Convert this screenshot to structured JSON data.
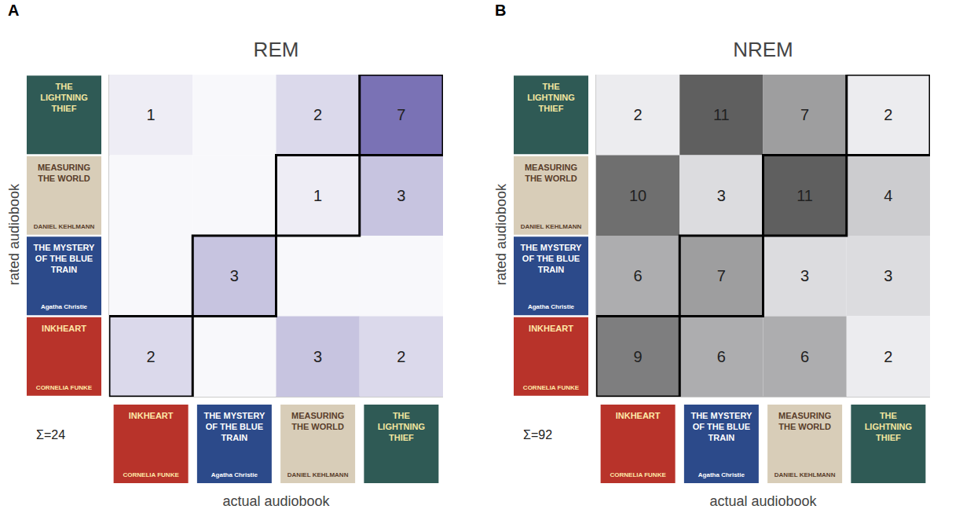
{
  "covers": [
    {
      "title": "INKHEART",
      "author": "CORNELIA FUNKE"
    },
    {
      "title": "THE MYSTERY OF THE BLUE TRAIN",
      "author": "Agatha Christie"
    },
    {
      "title": "MEASURING THE WORLD",
      "author": "DANIEL KEHLMANN"
    },
    {
      "title": "THE LIGHTNING THIEF"
    }
  ],
  "chart_data": [
    {
      "type": "heatmap",
      "panel": "A",
      "title": "REM",
      "x_label": "actual audiobook",
      "y_label": "rated audiobook",
      "x_categories": [
        "INKHEART",
        "THE MYSTERY OF THE BLUE TRAIN",
        "MEASURING THE WORLD",
        "THE LIGHTNING THIEF"
      ],
      "y_categories": [
        "THE LIGHTNING THIEF",
        "MEASURING THE WORLD",
        "THE MYSTERY OF THE BLUE TRAIN",
        "INKHEART"
      ],
      "cells": [
        [
          1,
          null,
          2,
          7
        ],
        [
          null,
          null,
          1,
          3
        ],
        [
          null,
          3,
          null,
          null
        ],
        [
          2,
          null,
          3,
          2
        ]
      ],
      "color": "#7a72b5",
      "total": {
        "value": 24,
        "label": "Σ=24"
      },
      "data_labels": true
    },
    {
      "type": "heatmap",
      "panel": "B",
      "title": "NREM",
      "x_label": "actual audiobook",
      "y_label": "rated audiobook",
      "x_categories": [
        "INKHEART",
        "THE MYSTERY OF THE BLUE TRAIN",
        "MEASURING THE WORLD",
        "THE LIGHTNING THIEF"
      ],
      "y_categories": [
        "THE LIGHTNING THIEF",
        "MEASURING THE WORLD",
        "THE MYSTERY OF THE BLUE TRAIN",
        "INKHEART"
      ],
      "cells": [
        [
          2,
          11,
          7,
          2
        ],
        [
          10,
          3,
          11,
          4
        ],
        [
          6,
          7,
          3,
          3
        ],
        [
          9,
          6,
          6,
          2
        ]
      ],
      "color": "#5f5f5f",
      "total": {
        "value": 92,
        "label": "Σ=92"
      },
      "data_labels": true
    }
  ]
}
